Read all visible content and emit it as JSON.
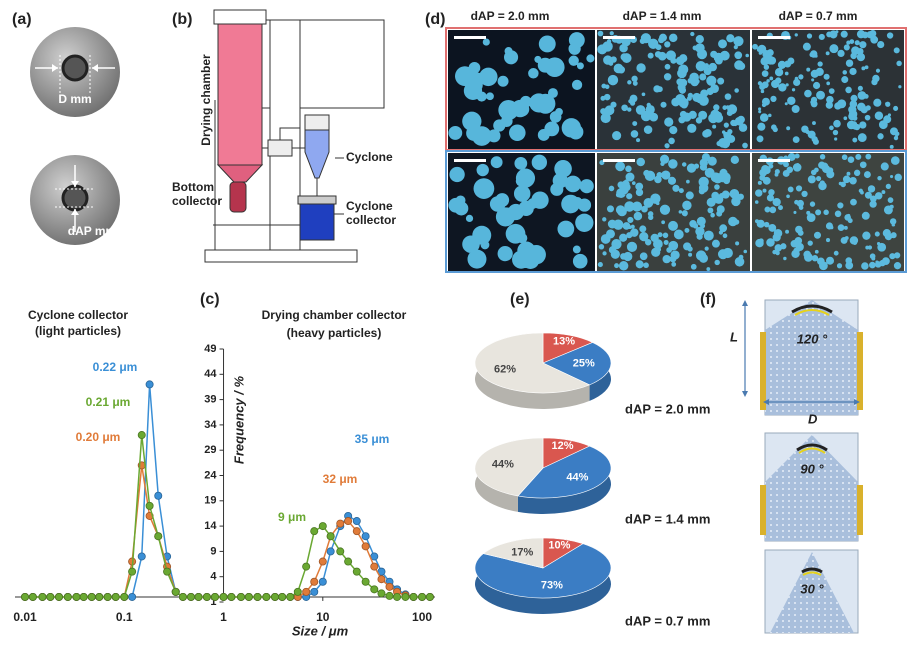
{
  "panels": {
    "a": {
      "label": "(a)",
      "texts": [
        "D mm",
        "dAP mm"
      ]
    },
    "b": {
      "label": "(b)",
      "labels": [
        "Drying chamber",
        "Bottom",
        "collector",
        "Cyclone",
        "Cyclone",
        "collector"
      ]
    },
    "d": {
      "label": "(d)",
      "headers": [
        "dAP = 2.0 mm",
        "dAP = 1.4 mm",
        "dAP = 0.7 mm"
      ]
    },
    "e": {
      "label": "(e)"
    },
    "f": {
      "label": "(f)",
      "angles": [
        "120 °",
        "90 °",
        "30 °"
      ],
      "length": "L",
      "diameter": "D"
    }
  },
  "chart_data": [
    {
      "type": "line",
      "panel_label": "(c)",
      "titles": [
        "Cyclone collector",
        "(light particles)",
        "Drying chamber collector",
        "(heavy particles)"
      ],
      "x_label": "Size / μm",
      "y_label": "Frequency / %",
      "xlog": true,
      "x": [
        0.01,
        0.012,
        0.015,
        0.018,
        0.022,
        0.027,
        0.033,
        0.039,
        0.047,
        0.056,
        0.068,
        0.082,
        0.1,
        0.12,
        0.15,
        0.18,
        0.22,
        0.27,
        0.33,
        0.39,
        0.47,
        0.56,
        0.68,
        0.82,
        1,
        1.2,
        1.5,
        1.8,
        2.2,
        2.7,
        3.3,
        3.9,
        4.7,
        5.6,
        6.8,
        8.2,
        10,
        12,
        15,
        18,
        22,
        27,
        33,
        39,
        47,
        56,
        68,
        82,
        100,
        120
      ],
      "xlim": [
        0.01,
        135
      ],
      "xticks": [
        0.01,
        0.1,
        1,
        10,
        100
      ],
      "ylim": [
        -1,
        49
      ],
      "yticks": [
        {
          "value": -1,
          "label": "1"
        },
        4,
        9,
        14,
        19,
        24,
        29,
        34,
        39,
        44,
        49
      ],
      "series": [
        {
          "color": "#3a8fd6",
          "values": [
            0,
            0,
            0,
            0,
            0,
            0,
            0,
            0,
            0,
            0,
            0,
            0,
            0,
            0,
            8,
            42,
            20,
            8,
            1,
            0,
            0,
            0,
            0,
            0,
            0,
            0,
            0,
            0,
            0,
            0,
            0,
            0,
            0,
            0,
            0,
            1,
            3,
            9,
            14,
            16,
            15,
            12,
            8,
            5,
            3,
            1.5,
            0.5,
            0,
            0,
            0
          ]
        },
        {
          "color": "#e07b39",
          "values": [
            0,
            0,
            0,
            0,
            0,
            0,
            0,
            0,
            0,
            0,
            0,
            0,
            0,
            7,
            26,
            16,
            12,
            6,
            1,
            0,
            0,
            0,
            0,
            0,
            0,
            0,
            0,
            0,
            0,
            0,
            0,
            0,
            0,
            0,
            1,
            3,
            7,
            12,
            14.5,
            15,
            13,
            10,
            6,
            3.5,
            2,
            1,
            0.3,
            0,
            0,
            0
          ]
        },
        {
          "color": "#6aa832",
          "values": [
            0,
            0,
            0,
            0,
            0,
            0,
            0,
            0,
            0,
            0,
            0,
            0,
            0,
            5,
            32,
            18,
            12,
            5,
            1,
            0,
            0,
            0,
            0,
            0,
            0,
            0,
            0,
            0,
            0,
            0,
            0,
            0,
            0,
            1,
            6,
            13,
            14,
            12,
            9,
            7,
            5,
            3,
            1.5,
            0.7,
            0.2,
            0,
            0,
            0,
            0,
            0
          ]
        }
      ],
      "annotations": [
        {
          "text": "0.22 μm",
          "color": "#3a8fd6"
        },
        {
          "text": "0.21 μm",
          "color": "#6aa832"
        },
        {
          "text": "0.20 μm",
          "color": "#e07b39"
        },
        {
          "text": "35 μm",
          "color": "#3a8fd6"
        },
        {
          "text": "32 μm",
          "color": "#e07b39"
        },
        {
          "text": "9 μm",
          "color": "#6aa832"
        }
      ]
    },
    {
      "type": "pie",
      "label": "dAP = 2.0 mm",
      "values": [
        13,
        25,
        62
      ],
      "value_labels": [
        "13%",
        "25%",
        "62%"
      ],
      "colors": [
        "#d9574f",
        "#3b7dc4",
        "#e8e5de"
      ]
    },
    {
      "type": "pie",
      "label": "dAP = 1.4 mm",
      "values": [
        12,
        44,
        44
      ],
      "value_labels": [
        "12%",
        "44%",
        "44%"
      ],
      "colors": [
        "#d9574f",
        "#3b7dc4",
        "#e8e5de"
      ]
    },
    {
      "type": "pie",
      "label": "dAP = 0.7 mm",
      "values": [
        10,
        73,
        17
      ],
      "value_labels": [
        "10%",
        "73%",
        "17%"
      ],
      "colors": [
        "#d9574f",
        "#3b7dc4",
        "#e8e5de"
      ]
    }
  ]
}
